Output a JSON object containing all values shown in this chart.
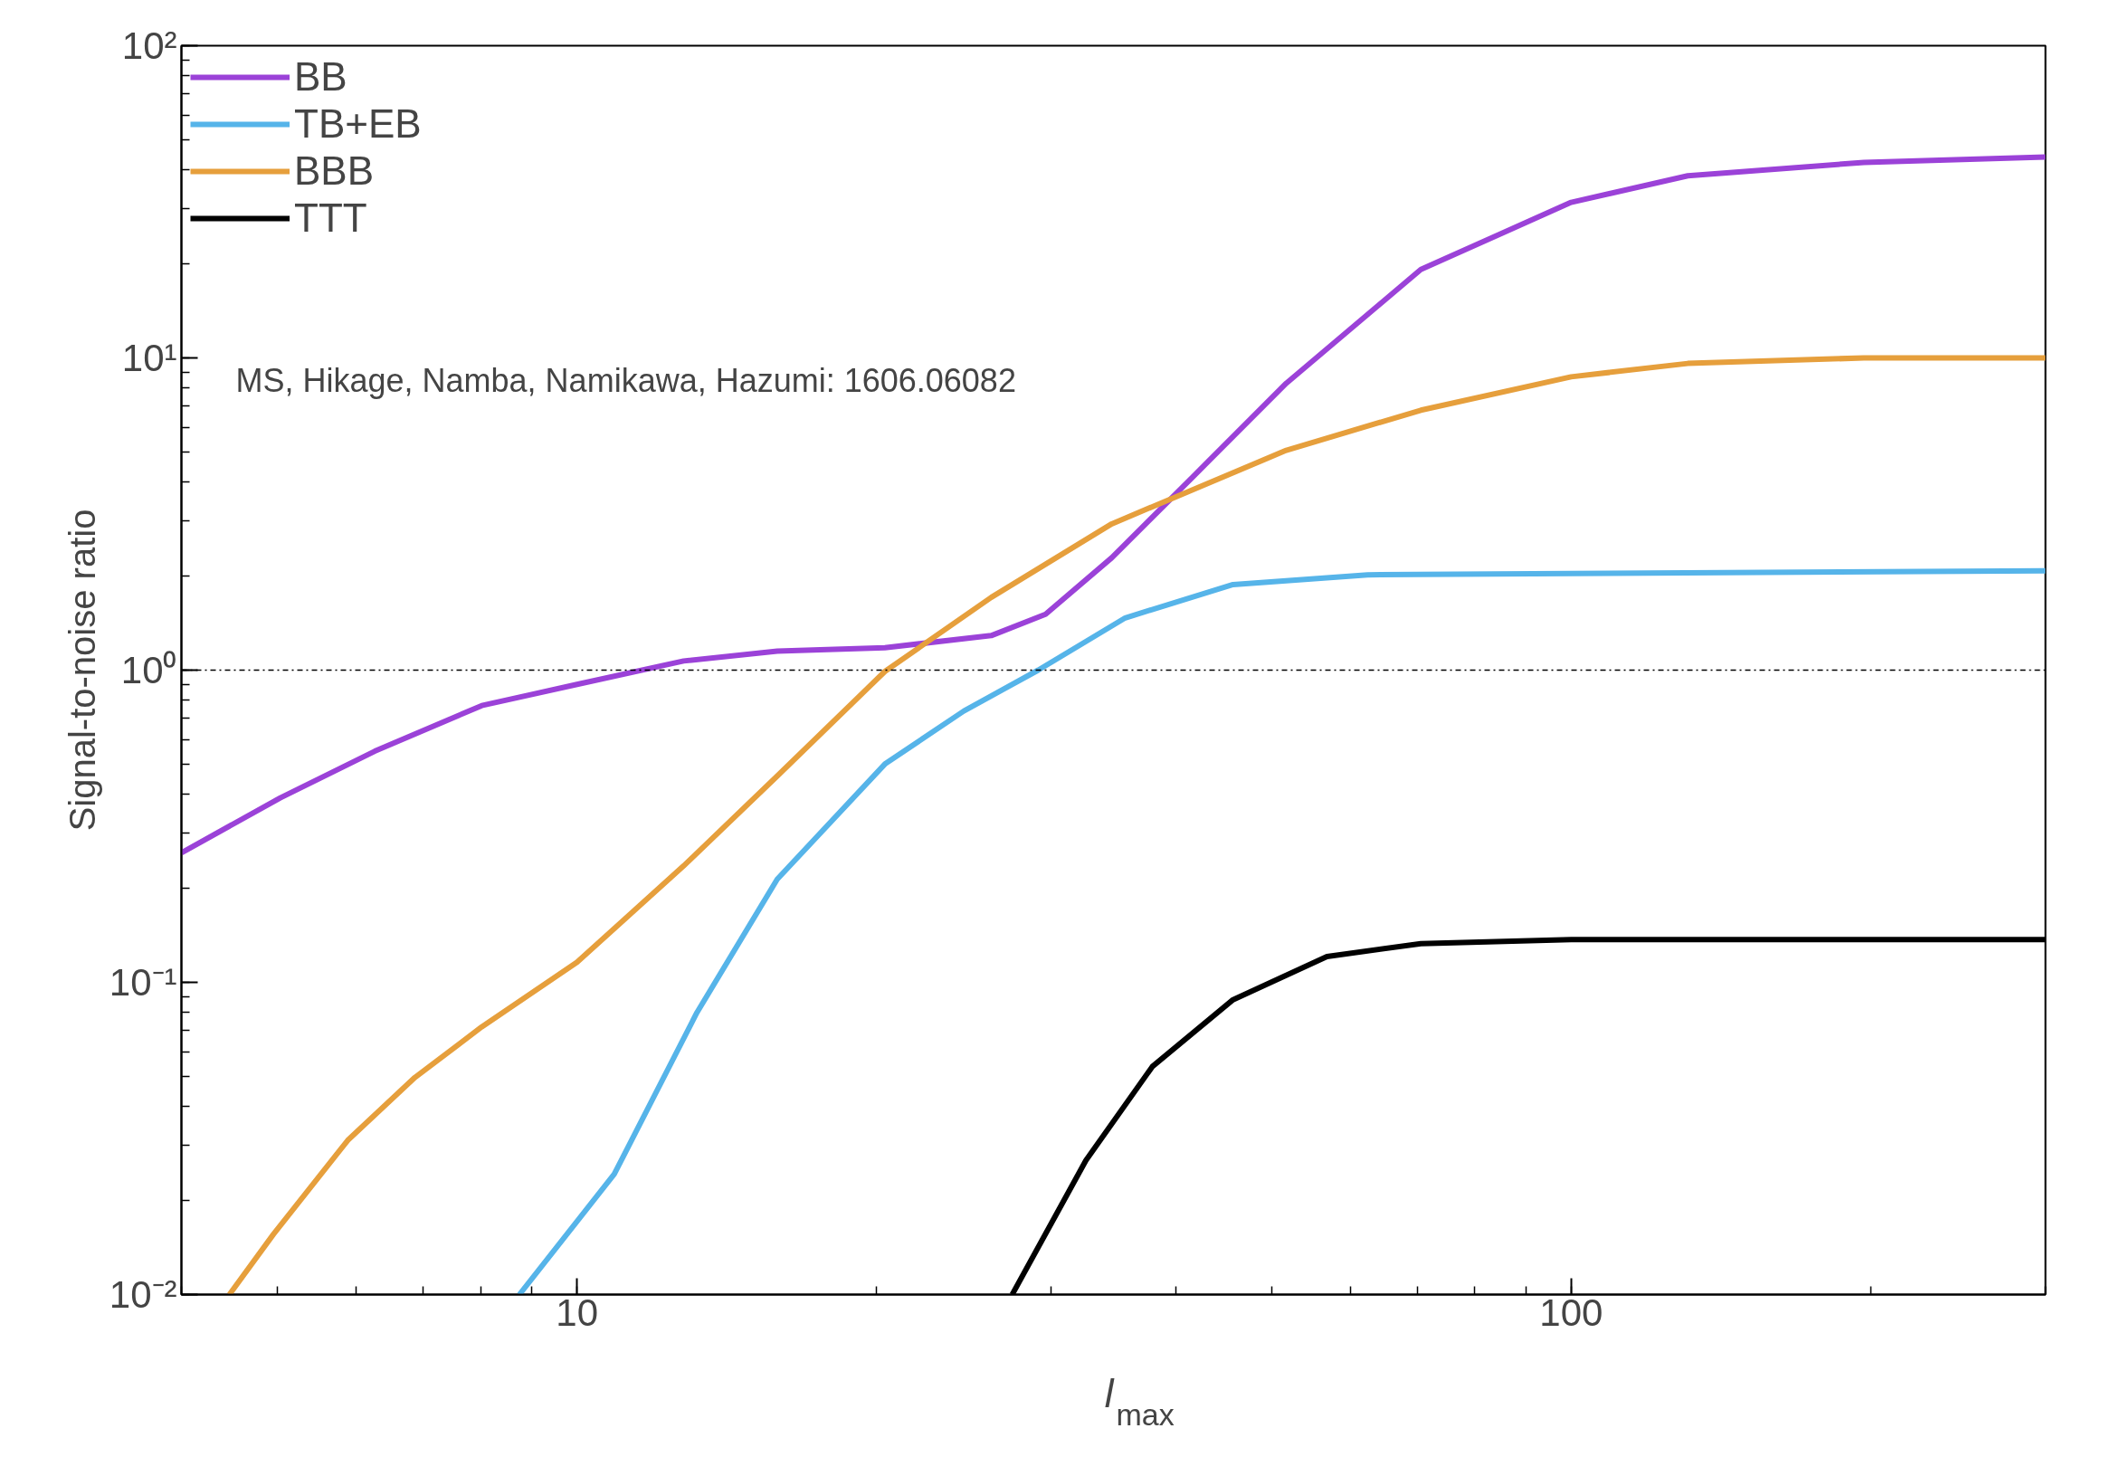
{
  "chart_data": {
    "type": "line",
    "xlabel": "l$_{max}$",
    "ylabel": "Signal-to-noise ratio",
    "log": "xy",
    "xlim": [
      4,
      300
    ],
    "ylim": [
      0.01,
      100
    ],
    "xticks": [
      10,
      100
    ],
    "yticks": [
      {
        "value": 0.01,
        "label": "10⁻²"
      },
      {
        "value": 0.1,
        "label": "10⁻¹"
      },
      {
        "value": 1,
        "label": "10⁰"
      },
      {
        "value": 10,
        "label": "10¹"
      },
      {
        "value": 100,
        "label": "10²"
      }
    ],
    "grid": false,
    "legend": "top left",
    "line_style": "solid",
    "marker": "none",
    "annotations": [
      "MS, Hikage, Namba, Namikawa, Hazumi: 1606.06082"
    ],
    "ref_lines": [
      {
        "axis": "y",
        "value": 1,
        "label": null,
        "color": "#000000",
        "line_style": "dashdot"
      }
    ],
    "series": [
      {
        "name": "BB",
        "color": "#9b42d8",
        "x": [
          4,
          5.03,
          6.26,
          8.02,
          10,
          12.8,
          15.9,
          20.4,
          26.1,
          29.6,
          34.5,
          41.6,
          51.7,
          70.6,
          100,
          131,
          197,
          300
        ],
        "values": [
          0.26,
          0.39,
          0.55,
          0.77,
          0.9,
          1.07,
          1.15,
          1.18,
          1.29,
          1.51,
          2.29,
          4.15,
          8.3,
          19.2,
          31.5,
          38.3,
          42.3,
          44
        ]
      },
      {
        "name": "TB+EB",
        "color": "#56b4e9",
        "x": [
          8.75,
          10.9,
          13.2,
          15.9,
          20.4,
          24.5,
          29.1,
          35.6,
          45.7,
          62.4,
          100,
          300
        ],
        "values": [
          0.01,
          0.0243,
          0.08,
          0.214,
          0.5,
          0.74,
          1.0,
          1.47,
          1.88,
          2.02,
          2.04,
          2.08
        ]
      },
      {
        "name": "BBB",
        "color": "#e69f3c",
        "x": [
          4.47,
          4.95,
          5.88,
          6.87,
          8.02,
          10,
          12.8,
          15.9,
          20.4,
          26.1,
          34.5,
          51.7,
          70.6,
          100,
          131,
          197,
          300
        ],
        "values": [
          0.01,
          0.0156,
          0.0312,
          0.0496,
          0.072,
          0.116,
          0.236,
          0.458,
          0.99,
          1.71,
          2.94,
          5.06,
          6.8,
          8.7,
          9.6,
          10.0,
          10.0
        ]
      },
      {
        "name": "TTT",
        "color": "#000000",
        "x": [
          27.4,
          32.5,
          37.9,
          45.7,
          56.8,
          70.6,
          100,
          300
        ],
        "values": [
          0.01,
          0.0269,
          0.0537,
          0.088,
          0.121,
          0.133,
          0.137,
          0.137
        ]
      }
    ]
  }
}
